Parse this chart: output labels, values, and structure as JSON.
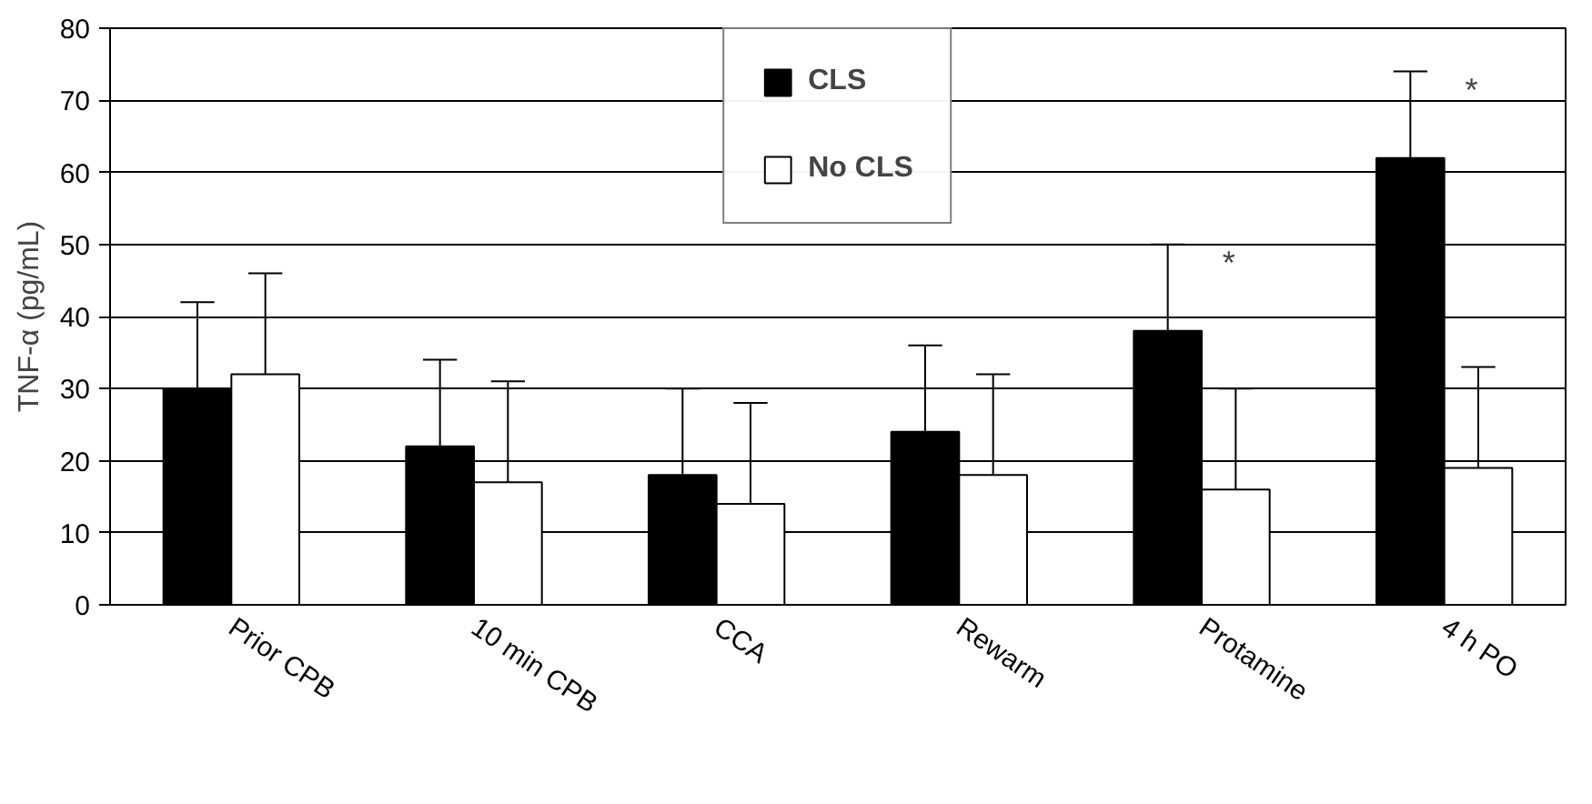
{
  "chart_data": {
    "type": "bar",
    "ylabel": "TNF-α (pg/mL)",
    "categories": [
      "Prior CPB",
      "10 min CPB",
      "CCA",
      "Rewarm",
      "Protamine",
      "4 h PO"
    ],
    "series": [
      {
        "name": "CLS",
        "color": "#000000",
        "values": [
          30,
          22,
          18,
          24,
          38,
          62
        ],
        "errors": [
          [
            30,
            42
          ],
          [
            22,
            34
          ],
          [
            18,
            30
          ],
          [
            24,
            36
          ],
          [
            38,
            50
          ],
          [
            62,
            74
          ]
        ]
      },
      {
        "name": "No CLS",
        "color": "#ffffff",
        "values": [
          32,
          17,
          14,
          18,
          16,
          19
        ],
        "errors": [
          [
            32,
            46
          ],
          [
            17,
            31
          ],
          [
            14,
            28
          ],
          [
            18,
            32
          ],
          [
            16,
            30
          ],
          [
            19,
            33
          ]
        ]
      }
    ],
    "annotations": [
      "*",
      "*"
    ],
    "ylim": [
      0,
      80
    ],
    "yticks": [
      0,
      10,
      20,
      30,
      40,
      50,
      60,
      70,
      80
    ],
    "grid": "y",
    "legend": "top"
  }
}
